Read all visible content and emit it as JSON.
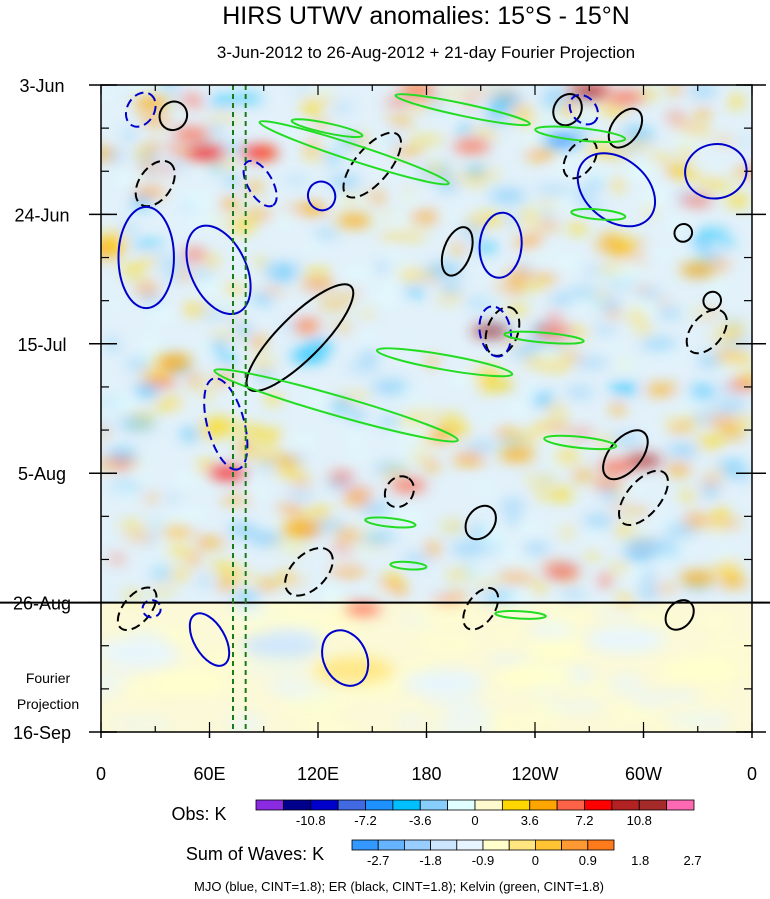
{
  "chart_data": {
    "type": "heatmap",
    "title": "HIRS UTWV anomalies: 15°S - 15°N",
    "subtitle": "3-Jun-2012 to 26-Aug-2012 + 21-day Fourier Projection",
    "x_axis": {
      "range_deg_east": [
        0,
        360
      ],
      "ticks": [
        {
          "label": "0",
          "lon": 0
        },
        {
          "label": "60E",
          "lon": 60
        },
        {
          "label": "120E",
          "lon": 120
        },
        {
          "label": "180",
          "lon": 180
        },
        {
          "label": "120W",
          "lon": 240
        },
        {
          "label": "60W",
          "lon": 300
        },
        {
          "label": "0",
          "lon": 360
        }
      ]
    },
    "y_axis": {
      "range_days": [
        0,
        105
      ],
      "ticks": [
        {
          "label": "3-Jun",
          "day": 0
        },
        {
          "label": "24-Jun",
          "day": 21
        },
        {
          "label": "15-Jul",
          "day": 42
        },
        {
          "label": "5-Aug",
          "day": 63
        },
        {
          "label": "26-Aug",
          "day": 84
        },
        {
          "label": "16-Sep",
          "day": 105
        }
      ],
      "divider_day": 84
    },
    "projection_label_1": "Fourier",
    "projection_label_2": "Projection",
    "reference_lon_lines": [
      73,
      80
    ],
    "obs_colorbar": {
      "label": "Obs: K",
      "colors": [
        "#8a2be2",
        "#00008b",
        "#0000cd",
        "#4169e1",
        "#1e90ff",
        "#00bfff",
        "#87cefa",
        "#e0ffff",
        "#fffacd",
        "#ffd700",
        "#ffa500",
        "#ff6347",
        "#ff0000",
        "#b22222",
        "#a52a2a",
        "#ff69b4"
      ],
      "tick_labels": [
        "-10.8",
        "-7.2",
        "-3.6",
        "0",
        "3.6",
        "7.2",
        "10.8"
      ]
    },
    "waves_colorbar": {
      "label": "Sum of Waves: K",
      "colors": [
        "#3399ff",
        "#66b3ff",
        "#99ccff",
        "#cce6ff",
        "#e6f5ff",
        "#ffffcc",
        "#ffe680",
        "#ffc233",
        "#ff9933",
        "#ff7a1a"
      ],
      "tick_labels": [
        "-2.7",
        "-1.8",
        "-0.9",
        "0",
        "0.9",
        "1.8",
        "2.7"
      ]
    },
    "wave_contours": {
      "mjo": {
        "name": "MJO",
        "color": "#0000cc",
        "cint": 1.8
      },
      "er": {
        "name": "ER",
        "color": "#000000",
        "cint": 1.8
      },
      "kelvin": {
        "name": "Kelvin",
        "color": "#22dd22",
        "cint": 1.8
      }
    },
    "footer": "MJO (blue, CINT=1.8); ER (black, CINT=1.8); Kelvin (green, CINT=1.8)",
    "features": [
      {
        "kind": "obs",
        "lon": 58,
        "day": 11,
        "val": 8
      },
      {
        "kind": "obs",
        "lon": 88,
        "day": 11,
        "val": 7
      },
      {
        "kind": "obs",
        "lon": 50,
        "day": 8,
        "val": 5
      },
      {
        "kind": "obs",
        "lon": 28,
        "day": 3,
        "val": 3
      },
      {
        "kind": "obs",
        "lon": 175,
        "day": 1,
        "val": 5
      },
      {
        "kind": "obs",
        "lon": 270,
        "day": 1,
        "val": 9
      },
      {
        "kind": "obs",
        "lon": 290,
        "day": 2,
        "val": 6
      },
      {
        "kind": "obs",
        "lon": 205,
        "day": 10,
        "val": 6
      },
      {
        "kind": "obs",
        "lon": 255,
        "day": 9,
        "val": -8
      },
      {
        "kind": "obs",
        "lon": 225,
        "day": 18,
        "val": -4
      },
      {
        "kind": "obs",
        "lon": 250,
        "day": 40,
        "val": 5
      },
      {
        "kind": "obs",
        "lon": 215,
        "day": 40,
        "val": 10
      },
      {
        "kind": "obs",
        "lon": 300,
        "day": 61,
        "val": 9
      },
      {
        "kind": "obs",
        "lon": 285,
        "day": 62,
        "val": 6
      },
      {
        "kind": "obs",
        "lon": 70,
        "day": 63,
        "val": 7
      },
      {
        "kind": "obs",
        "lon": 170,
        "day": 65,
        "val": 6
      },
      {
        "kind": "obs",
        "lon": 145,
        "day": 85,
        "val": 5
      },
      {
        "kind": "obs",
        "lon": 255,
        "day": 79,
        "val": 5
      },
      {
        "kind": "obs",
        "lon": 115,
        "day": 44,
        "val": -5
      },
      {
        "kind": "obs",
        "lon": 160,
        "day": 49,
        "val": -4
      },
      {
        "kind": "obs",
        "lon": 100,
        "day": 30,
        "val": -4
      },
      {
        "kind": "obs",
        "lon": 20,
        "day": 55,
        "val": -3
      },
      {
        "kind": "obs",
        "lon": 300,
        "day": 75,
        "val": -4
      },
      {
        "kind": "obs",
        "lon": 140,
        "day": 22,
        "val": 4
      },
      {
        "kind": "obs",
        "lon": 330,
        "day": 30,
        "val": 4
      },
      {
        "kind": "obs",
        "lon": 40,
        "day": 45,
        "val": 4
      },
      {
        "kind": "obs",
        "lon": 190,
        "day": 30,
        "val": -4
      },
      {
        "kind": "obs",
        "lon": 230,
        "day": 60,
        "val": 4
      },
      {
        "kind": "obs",
        "lon": 330,
        "day": 80,
        "val": 3
      },
      {
        "kind": "obs",
        "lon": 110,
        "day": 72,
        "val": 4
      },
      {
        "kind": "sow",
        "lon": 50,
        "day": 97,
        "val": 0.8
      },
      {
        "kind": "sow",
        "lon": 140,
        "day": 95,
        "val": 1.2
      },
      {
        "kind": "sow",
        "lon": 240,
        "day": 96,
        "val": 0.8
      },
      {
        "kind": "sow",
        "lon": 330,
        "day": 95,
        "val": 0.8
      },
      {
        "kind": "sow",
        "lon": 100,
        "day": 91,
        "val": -0.9
      },
      {
        "kind": "sow",
        "lon": 20,
        "day": 92,
        "val": -0.7
      },
      {
        "kind": "sow",
        "lon": 190,
        "day": 97,
        "val": -0.7
      },
      {
        "kind": "sow",
        "lon": 290,
        "day": 90,
        "val": -0.6
      }
    ],
    "contours": [
      {
        "wave": "er",
        "dashed": false,
        "lon": 40,
        "day": 5,
        "rx": 8,
        "ry": 2.2,
        "rot": -60
      },
      {
        "wave": "er",
        "dashed": false,
        "lon": 258,
        "day": 4,
        "rx": 9,
        "ry": 2.2,
        "rot": -60
      },
      {
        "wave": "er",
        "dashed": true,
        "lon": 30,
        "day": 16,
        "rx": 14,
        "ry": 2.6,
        "rot": -55
      },
      {
        "wave": "er",
        "dashed": true,
        "lon": 150,
        "day": 13,
        "rx": 22,
        "ry": 2.8,
        "rot": -50
      },
      {
        "wave": "er",
        "dashed": true,
        "lon": 265,
        "day": 12,
        "rx": 12,
        "ry": 2.2,
        "rot": -55
      },
      {
        "wave": "er",
        "dashed": false,
        "lon": 290,
        "day": 7,
        "rx": 12,
        "ry": 2.2,
        "rot": -55
      },
      {
        "wave": "er",
        "dashed": false,
        "lon": 197,
        "day": 27,
        "rx": 14,
        "ry": 2.2,
        "rot": -70
      },
      {
        "wave": "er",
        "dashed": false,
        "lon": 110,
        "day": 41,
        "rx": 40,
        "ry": 3.5,
        "rot": -45
      },
      {
        "wave": "er",
        "dashed": true,
        "lon": 222,
        "day": 40,
        "rx": 14,
        "ry": 2.5,
        "rot": -70
      },
      {
        "wave": "er",
        "dashed": true,
        "lon": 335,
        "day": 40,
        "rx": 14,
        "ry": 2.5,
        "rot": -50
      },
      {
        "wave": "er",
        "dashed": false,
        "lon": 290,
        "day": 60,
        "rx": 16,
        "ry": 2.6,
        "rot": -50
      },
      {
        "wave": "er",
        "dashed": true,
        "lon": 300,
        "day": 67,
        "rx": 18,
        "ry": 2.7,
        "rot": -50
      },
      {
        "wave": "er",
        "dashed": false,
        "lon": 210,
        "day": 71,
        "rx": 10,
        "ry": 2.2,
        "rot": -55
      },
      {
        "wave": "er",
        "dashed": true,
        "lon": 165,
        "day": 66,
        "rx": 9,
        "ry": 2.2,
        "rot": -55
      },
      {
        "wave": "er",
        "dashed": true,
        "lon": 115,
        "day": 79,
        "rx": 16,
        "ry": 2.8,
        "rot": -45
      },
      {
        "wave": "er",
        "dashed": true,
        "lon": 20,
        "day": 85,
        "rx": 14,
        "ry": 2.2,
        "rot": -50
      },
      {
        "wave": "er",
        "dashed": true,
        "lon": 210,
        "day": 85,
        "rx": 13,
        "ry": 2.2,
        "rot": -55
      },
      {
        "wave": "er",
        "dashed": false,
        "lon": 320,
        "day": 86,
        "rx": 9,
        "ry": 2,
        "rot": -50
      },
      {
        "wave": "er",
        "dashed": false,
        "lon": 338,
        "day": 35,
        "rx": 5,
        "ry": 1.4,
        "rot": -50
      },
      {
        "wave": "er",
        "dashed": false,
        "lon": 322,
        "day": 24,
        "rx": 5,
        "ry": 1.4,
        "rot": -50
      },
      {
        "wave": "mjo",
        "dashed": true,
        "lon": 22,
        "day": 4,
        "rx": 10,
        "ry": 2.2,
        "rot": -60
      },
      {
        "wave": "mjo",
        "dashed": false,
        "lon": 25,
        "day": 28,
        "rx": 28,
        "ry": 4.5,
        "rot": -90
      },
      {
        "wave": "mjo",
        "dashed": false,
        "lon": 65,
        "day": 30,
        "rx": 26,
        "ry": 4.5,
        "rot": 65
      },
      {
        "wave": "mjo",
        "dashed": true,
        "lon": 88,
        "day": 16,
        "rx": 14,
        "ry": 2,
        "rot": 60
      },
      {
        "wave": "mjo",
        "dashed": false,
        "lon": 122,
        "day": 18,
        "rx": 8,
        "ry": 2.2,
        "rot": 70
      },
      {
        "wave": "mjo",
        "dashed": true,
        "lon": 69,
        "day": 55,
        "rx": 26,
        "ry": 3,
        "rot": 75
      },
      {
        "wave": "mjo",
        "dashed": false,
        "lon": 221,
        "day": 26,
        "rx": 18,
        "ry": 3.4,
        "rot": -85
      },
      {
        "wave": "mjo",
        "dashed": true,
        "lon": 218,
        "day": 40,
        "rx": 14,
        "ry": 2.5,
        "rot": 80
      },
      {
        "wave": "mjo",
        "dashed": false,
        "lon": 285,
        "day": 17,
        "rx": 24,
        "ry": 5,
        "rot": 40
      },
      {
        "wave": "mjo",
        "dashed": false,
        "lon": 340,
        "day": 14,
        "rx": 15,
        "ry": 5,
        "rot": 80
      },
      {
        "wave": "mjo",
        "dashed": true,
        "lon": 267,
        "day": 4,
        "rx": 9,
        "ry": 2,
        "rot": 50
      },
      {
        "wave": "mjo",
        "dashed": false,
        "lon": 135,
        "day": 93,
        "rx": 16,
        "ry": 3.5,
        "rot": 65
      },
      {
        "wave": "mjo",
        "dashed": false,
        "lon": 60,
        "day": 90,
        "rx": 16,
        "ry": 2.5,
        "rot": 60
      },
      {
        "wave": "mjo",
        "dashed": true,
        "lon": 28,
        "day": 85,
        "rx": 5,
        "ry": 1.4,
        "rot": 0
      },
      {
        "wave": "kelvin",
        "dashed": false,
        "lon": 140,
        "day": 11,
        "rx": 55,
        "ry": 1.3,
        "rot": 18
      },
      {
        "wave": "kelvin",
        "dashed": false,
        "lon": 200,
        "day": 4,
        "rx": 38,
        "ry": 1,
        "rot": 12
      },
      {
        "wave": "kelvin",
        "dashed": false,
        "lon": 265,
        "day": 8,
        "rx": 25,
        "ry": 1,
        "rot": 6
      },
      {
        "wave": "kelvin",
        "dashed": false,
        "lon": 275,
        "day": 21,
        "rx": 15,
        "ry": 0.8,
        "rot": 5
      },
      {
        "wave": "kelvin",
        "dashed": false,
        "lon": 125,
        "day": 7,
        "rx": 20,
        "ry": 0.8,
        "rot": 12
      },
      {
        "wave": "kelvin",
        "dashed": false,
        "lon": 130,
        "day": 52,
        "rx": 70,
        "ry": 1.6,
        "rot": 16
      },
      {
        "wave": "kelvin",
        "dashed": false,
        "lon": 190,
        "day": 45,
        "rx": 38,
        "ry": 1.2,
        "rot": 10
      },
      {
        "wave": "kelvin",
        "dashed": false,
        "lon": 245,
        "day": 41,
        "rx": 22,
        "ry": 0.8,
        "rot": 5
      },
      {
        "wave": "kelvin",
        "dashed": false,
        "lon": 265,
        "day": 58,
        "rx": 20,
        "ry": 0.9,
        "rot": 6
      },
      {
        "wave": "kelvin",
        "dashed": false,
        "lon": 160,
        "day": 71,
        "rx": 14,
        "ry": 0.7,
        "rot": 6
      },
      {
        "wave": "kelvin",
        "dashed": false,
        "lon": 170,
        "day": 78,
        "rx": 10,
        "ry": 0.6,
        "rot": 4
      },
      {
        "wave": "kelvin",
        "dashed": false,
        "lon": 232,
        "day": 86,
        "rx": 14,
        "ry": 0.6,
        "rot": 3
      }
    ]
  }
}
